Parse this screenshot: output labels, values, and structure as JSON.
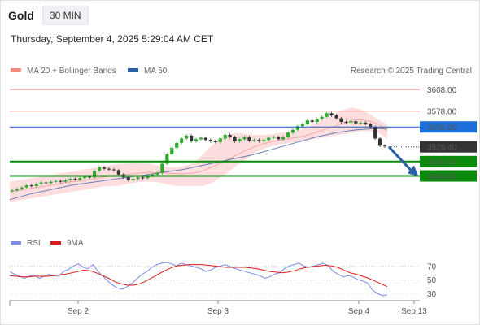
{
  "header": {
    "instrument": "Gold",
    "timeframe": "30 MIN",
    "timestamp": "Thursday, September 4, 2025 5:29:04 AM CET"
  },
  "colors": {
    "resistance": "#f28b82",
    "ma50": "#1e5bbf",
    "support": "#0a8a0a",
    "bull": "#2eaa2e",
    "bear": "#333333",
    "band": "#fcd8d8",
    "rsi": "#7a8ce6",
    "rsi_ma": "#dd1d1d",
    "arrow": "#2b5fa8"
  },
  "chart_data": [
    {
      "type": "line",
      "legend": [
        {
          "name": "MA 20 + Bollinger Bands",
          "color": "#f28b82"
        },
        {
          "name": "MA 50",
          "color": "#2b5fa8"
        }
      ],
      "attribution": "Research © 2025 Trading Central",
      "x_labels": [
        "Sep 2",
        "Sep 3",
        "Sep 4",
        "Sep 13"
      ],
      "y_range": [
        3430,
        3625
      ],
      "levels": [
        {
          "value": 3608.0,
          "label": "3608.00",
          "kind": "resistance"
        },
        {
          "value": 3578.0,
          "label": "3578.00",
          "kind": "resistance"
        },
        {
          "value": 3556.0,
          "label": "3556.00",
          "kind": "pivot"
        },
        {
          "value": 3528.4,
          "label": "3528.40",
          "kind": "last"
        },
        {
          "value": 3508.0,
          "label": "3508.00",
          "kind": "support"
        },
        {
          "value": 3488.0,
          "label": "3488.00",
          "kind": "support"
        }
      ],
      "price_path": [
        3468,
        3470,
        3472,
        3475,
        3474,
        3477,
        3479,
        3478,
        3480,
        3481,
        3480,
        3482,
        3484,
        3483,
        3485,
        3487,
        3486,
        3495,
        3500,
        3498,
        3497,
        3496,
        3490,
        3486,
        3482,
        3484,
        3486,
        3485,
        3488,
        3490,
        3492,
        3505,
        3518,
        3527,
        3534,
        3540,
        3544,
        3536,
        3539,
        3541,
        3538,
        3536,
        3535,
        3540,
        3545,
        3542,
        3536,
        3539,
        3542,
        3537,
        3538,
        3536,
        3538,
        3541,
        3542,
        3539,
        3542,
        3548,
        3552,
        3557,
        3560,
        3565,
        3563,
        3567,
        3570,
        3575,
        3572,
        3568,
        3563,
        3562,
        3564,
        3561,
        3562,
        3560,
        3556,
        3540,
        3530,
        3529
      ],
      "ma20_path": [
        3466,
        3468,
        3470,
        3472,
        3474,
        3476,
        3478,
        3480,
        3481,
        3483,
        3485,
        3487,
        3488,
        3490,
        3491,
        3492,
        3493,
        3493,
        3492,
        3491,
        3491,
        3492,
        3495,
        3500,
        3506,
        3512,
        3518,
        3524,
        3529,
        3533,
        3536,
        3538,
        3540,
        3542,
        3545,
        3549,
        3553,
        3557,
        3561,
        3565,
        3566,
        3564,
        3560,
        3550
      ],
      "bb_upper": [
        3480,
        3482,
        3484,
        3486,
        3488,
        3490,
        3492,
        3494,
        3496,
        3498,
        3500,
        3502,
        3504,
        3505,
        3506,
        3506,
        3505,
        3502,
        3500,
        3500,
        3502,
        3506,
        3518,
        3530,
        3540,
        3546,
        3548,
        3546,
        3545,
        3545,
        3546,
        3548,
        3550,
        3552,
        3556,
        3562,
        3568,
        3574,
        3580,
        3583,
        3580,
        3574,
        3566,
        3560
      ],
      "bb_lower": [
        3452,
        3454,
        3456,
        3458,
        3460,
        3462,
        3464,
        3466,
        3468,
        3470,
        3472,
        3474,
        3474,
        3476,
        3478,
        3480,
        3480,
        3479,
        3476,
        3474,
        3474,
        3474,
        3474,
        3478,
        3486,
        3494,
        3504,
        3512,
        3520,
        3526,
        3530,
        3532,
        3534,
        3536,
        3538,
        3540,
        3542,
        3544,
        3546,
        3548,
        3550,
        3550,
        3548,
        3540
      ],
      "ma50_path": [
        3455,
        3459,
        3463,
        3466,
        3469,
        3472,
        3475,
        3477,
        3479,
        3481,
        3483,
        3485,
        3487,
        3489,
        3491,
        3493,
        3495,
        3497,
        3500,
        3503,
        3506,
        3509,
        3512,
        3515,
        3518,
        3522,
        3526,
        3530,
        3534,
        3538,
        3542,
        3545,
        3548,
        3550,
        3552,
        3553,
        3554,
        3553
      ],
      "forecast": [
        3528.4,
        3488.0
      ]
    },
    {
      "type": "line",
      "legend": [
        {
          "name": "RSI",
          "color": "#7a8ce6"
        },
        {
          "name": "9MA",
          "color": "#dd1d1d"
        }
      ],
      "y_ticks": [
        70,
        50,
        30
      ],
      "y_range": [
        22,
        88
      ],
      "rsi_path": [
        62,
        58,
        55,
        52,
        55,
        57,
        52,
        55,
        58,
        56,
        55,
        62,
        65,
        70,
        73,
        68,
        66,
        72,
        62,
        55,
        48,
        42,
        38,
        36,
        40,
        45,
        52,
        58,
        62,
        68,
        72,
        74,
        75,
        73,
        70,
        74,
        72,
        70,
        68,
        66,
        62,
        64,
        68,
        70,
        72,
        69,
        66,
        64,
        62,
        60,
        58,
        56,
        52,
        54,
        58,
        60,
        66,
        70,
        72,
        74,
        70,
        68,
        70,
        72,
        74,
        70,
        62,
        58,
        54,
        56,
        54,
        50,
        48,
        45,
        35,
        30,
        27,
        28
      ],
      "rsi_ma_path": [
        56,
        55,
        54,
        54,
        55,
        55,
        55,
        56,
        57,
        58,
        60,
        62,
        64,
        63,
        60,
        56,
        52,
        47,
        44,
        42,
        42,
        44,
        48,
        53,
        58,
        63,
        67,
        70,
        71,
        72,
        72,
        72,
        71,
        70,
        69,
        68,
        68,
        68,
        68,
        67,
        66,
        64,
        62,
        61,
        60,
        61,
        63,
        66,
        68,
        69,
        70,
        71,
        70,
        68,
        64,
        60,
        58,
        55,
        52,
        48,
        44,
        40
      ]
    }
  ]
}
